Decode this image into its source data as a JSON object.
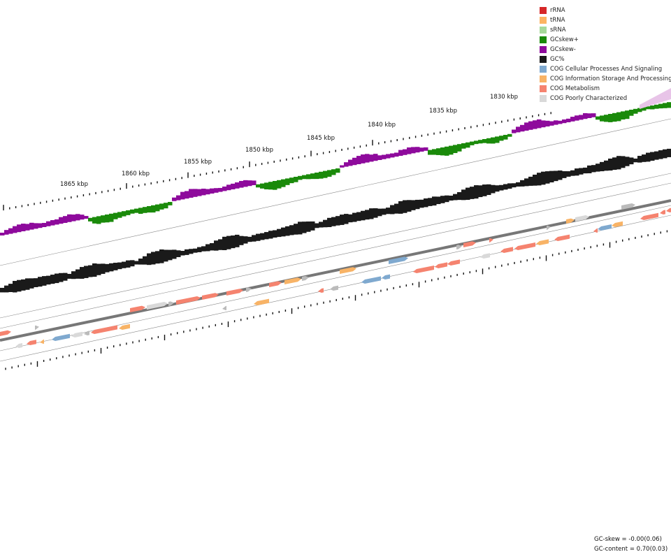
{
  "legend": {
    "items": [
      {
        "label": "rRNA",
        "color": "#d62728"
      },
      {
        "label": "tRNA",
        "color": "#fdb462"
      },
      {
        "label": "sRNA",
        "color": "#a6d99a"
      },
      {
        "label": "GCskew+",
        "color": "#1a8a0a"
      },
      {
        "label": "GCskew-",
        "color": "#8e0a9c"
      },
      {
        "label": "GC%",
        "color": "#1a1a1a"
      },
      {
        "label": "COG Cellular Processes And Signaling",
        "color": "#7fa9cf"
      },
      {
        "label": "COG Information Storage And Processing",
        "color": "#f8b366"
      },
      {
        "label": "COG Metabolism",
        "color": "#f5836f"
      },
      {
        "label": "COG Poorly Characterized",
        "color": "#d9d9d9"
      }
    ]
  },
  "ruler": {
    "labels": [
      "1830 kbp",
      "1835 kbp",
      "1840 kbp",
      "1845 kbp",
      "1850 kbp",
      "1855 kbp",
      "1860 kbp",
      "1865 kbp"
    ]
  },
  "stats": {
    "gc_skew": "GC-skew = -0.00(0.06)",
    "gc_content": "GC-content = 0.70(0.03)"
  }
}
